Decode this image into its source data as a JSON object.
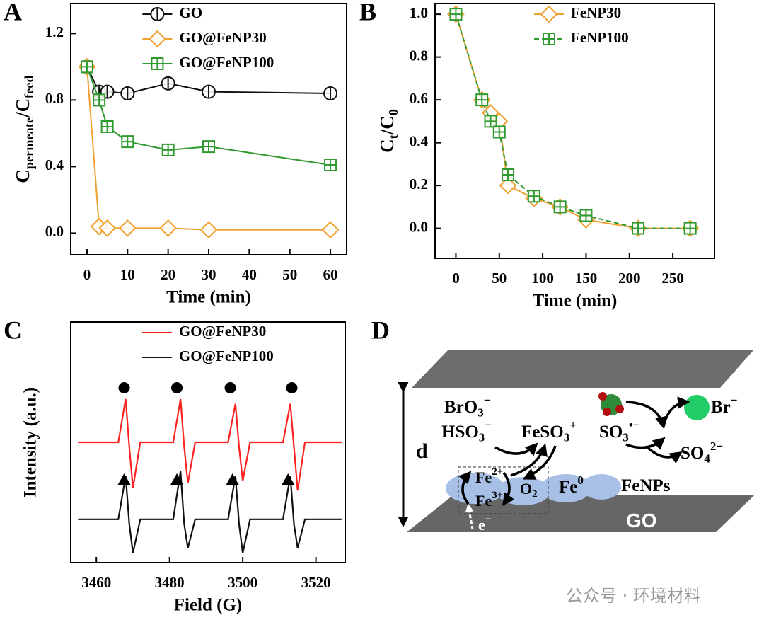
{
  "chart_data": [
    {
      "type": "line",
      "panel_label": "A",
      "xlabel": "Time (min)",
      "ylabel": [
        {
          "t": "C"
        },
        {
          "t": "permeate",
          "sub": true
        },
        {
          "t": "/C"
        },
        {
          "t": "feed",
          "sub": true
        }
      ],
      "x": [
        0,
        3,
        5,
        10,
        20,
        30,
        60
      ],
      "series": [
        {
          "name": "GO",
          "color": "#111111",
          "marker": "circle",
          "values": [
            1.0,
            0.85,
            0.85,
            0.84,
            0.9,
            0.85,
            0.84
          ]
        },
        {
          "name": "GO@FeNP30",
          "color": "#f0a030",
          "marker": "diamond",
          "values": [
            1.0,
            0.04,
            0.03,
            0.03,
            0.03,
            0.02,
            0.02
          ]
        },
        {
          "name": "GO@FeNP100",
          "color": "#2f9a2f",
          "marker": "square",
          "values": [
            1.0,
            0.8,
            0.64,
            0.55,
            0.5,
            0.52,
            0.41
          ]
        }
      ],
      "xlim": [
        -4,
        64
      ],
      "xticks": [
        0,
        10,
        20,
        30,
        40,
        50,
        60
      ],
      "ylim": [
        -0.13,
        1.38
      ],
      "yticks": [
        {
          "value": 0,
          "label": "0.0"
        },
        0.4,
        0.8,
        1.2
      ],
      "legend": "upper center"
    },
    {
      "type": "line",
      "panel_label": "B",
      "xlabel": "Time (min)",
      "ylabel": [
        {
          "t": "C"
        },
        {
          "t": "t",
          "sub": true
        },
        {
          "t": "/C"
        },
        {
          "t": "0",
          "sub": true
        }
      ],
      "x": [
        0,
        30,
        40,
        50,
        60,
        90,
        120,
        150,
        210,
        270
      ],
      "series": [
        {
          "name": "FeNP30",
          "color": "#f0a030",
          "marker": "diamond",
          "values": [
            1.0,
            0.6,
            0.54,
            0.5,
            0.2,
            0.14,
            0.1,
            0.04,
            0.0,
            0.0
          ]
        },
        {
          "name": "FeNP100",
          "color": "#2f9a2f",
          "marker": "square",
          "dash": true,
          "values": [
            1.0,
            0.6,
            0.5,
            0.45,
            0.25,
            0.15,
            0.1,
            0.06,
            0.0,
            0.0
          ]
        }
      ],
      "xlim": [
        -24,
        298
      ],
      "xticks": [
        0,
        50,
        100,
        150,
        200,
        250
      ],
      "ylim": [
        -0.14,
        1.05
      ],
      "yticks": [
        {
          "value": 0,
          "label": "0.0"
        },
        0.2,
        0.4,
        0.6,
        0.8,
        {
          "value": 1,
          "label": "1.0"
        }
      ],
      "legend": "upper right"
    },
    {
      "type": "line",
      "panel_label": "C",
      "xlabel": "Field (G)",
      "ylabel": "Intensity (a.u.)",
      "x": [
        3455,
        3466,
        3468,
        3469,
        3470,
        3472,
        3481,
        3483,
        3484,
        3485,
        3487,
        3496,
        3498,
        3499,
        3500,
        3502,
        3511,
        3513,
        3514,
        3515,
        3517,
        3527
      ],
      "series": [
        {
          "name": "GO@FeNP30",
          "color": "#ff2020",
          "peak_marker": "circle",
          "peaks": [
            3467.6,
            3482.0,
            3496.6,
            3513.4
          ],
          "values": [
            5.0,
            5.0,
            6.8,
            4.8,
            3.1,
            5.0,
            5.0,
            6.8,
            4.8,
            3.3,
            5.0,
            5.0,
            6.6,
            4.8,
            3.4,
            5.0,
            5.0,
            6.6,
            4.8,
            3.0,
            5.0,
            5.0
          ]
        },
        {
          "name": "GO@FeNP100",
          "color": "#111111",
          "peak_marker": "triangle",
          "peaks": [
            3467.6,
            3482.0,
            3497.2,
            3512.4
          ],
          "values": [
            1.8,
            1.8,
            3.6,
            1.6,
            0.4,
            1.8,
            1.8,
            3.8,
            1.6,
            0.6,
            1.8,
            1.8,
            3.6,
            1.6,
            0.4,
            1.8,
            1.8,
            3.6,
            1.6,
            0.6,
            1.8,
            1.8
          ]
        }
      ],
      "xlim": [
        3453,
        3528
      ],
      "xticks": [
        3460,
        3480,
        3500,
        3520
      ],
      "ylim": [
        0,
        10
      ],
      "legend": "upper center"
    }
  ],
  "diagram": {
    "panel_label": "D",
    "labels": [
      [
        {
          "t": "d"
        }
      ],
      [
        {
          "t": "BrO"
        },
        {
          "t": "3",
          "sub": true
        },
        {
          "t": "−",
          "sup": true
        }
      ],
      [
        {
          "t": "HSO"
        },
        {
          "t": "3",
          "sub": true
        },
        {
          "t": "−",
          "sup": true
        }
      ],
      [
        {
          "t": "FeSO"
        },
        {
          "t": "3",
          "sub": true
        },
        {
          "t": "+",
          "sup": true
        }
      ],
      [
        {
          "t": "SO"
        },
        {
          "t": "3",
          "sub": true
        },
        {
          "t": "•−",
          "sup": true
        }
      ],
      [
        {
          "t": "SO"
        },
        {
          "t": "4",
          "sub": true
        },
        {
          "t": "2−",
          "sup": true
        }
      ],
      [
        {
          "t": "Br"
        },
        {
          "t": "−",
          "sup": true
        }
      ],
      [
        {
          "t": "Fe"
        },
        {
          "t": "2+",
          "sup": true
        }
      ],
      [
        {
          "t": "Fe"
        },
        {
          "t": "3+",
          "sup": true
        }
      ],
      [
        {
          "t": "O"
        },
        {
          "t": "2",
          "sub": true
        }
      ],
      [
        {
          "t": "Fe"
        },
        {
          "t": "0",
          "sup": true
        }
      ],
      [
        {
          "t": "FeNPs"
        }
      ],
      [
        {
          "t": "e"
        },
        {
          "t": "−",
          "sup": true
        }
      ],
      [
        {
          "t": "GO"
        }
      ]
    ]
  },
  "watermark": "公众号 · 环境材料"
}
